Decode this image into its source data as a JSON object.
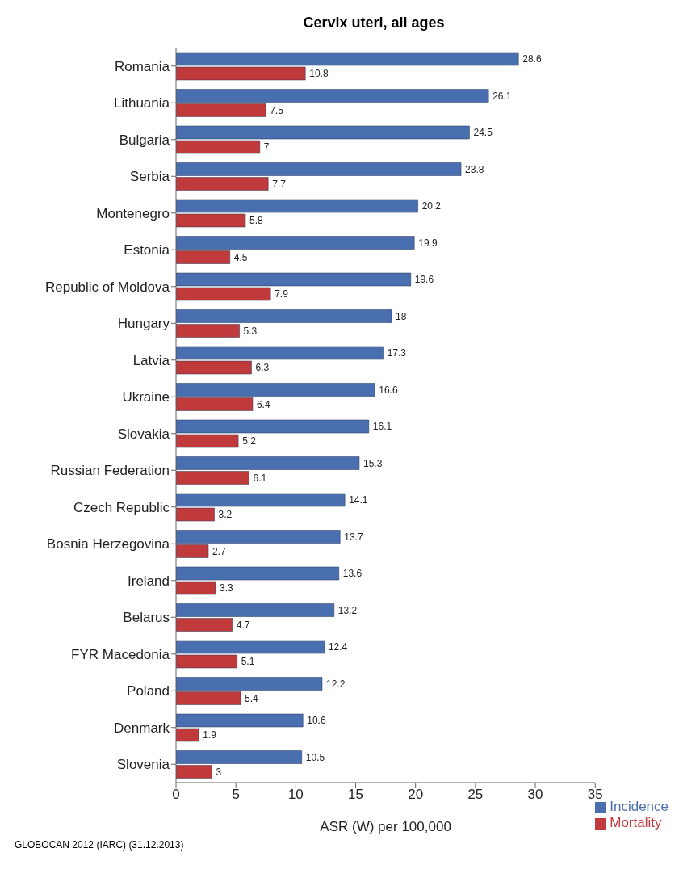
{
  "chart_data": {
    "type": "bar",
    "orientation": "horizontal",
    "title": "Cervix uteri, all ages",
    "xlabel": "ASR (W) per 100,000",
    "categories": [
      "Romania",
      "Lithuania",
      "Bulgaria",
      "Serbia",
      "Montenegro",
      "Estonia",
      "Republic of Moldova",
      "Hungary",
      "Latvia",
      "Ukraine",
      "Slovakia",
      "Russian Federation",
      "Czech Republic",
      "Bosnia Herzegovina",
      "Ireland",
      "Belarus",
      "FYR Macedonia",
      "Poland",
      "Denmark",
      "Slovenia"
    ],
    "series": [
      {
        "name": "Incidence",
        "color": "#4a6fb0",
        "values": [
          28.6,
          26.1,
          24.5,
          23.8,
          20.2,
          19.9,
          19.6,
          18,
          17.3,
          16.6,
          16.1,
          15.3,
          14.1,
          13.7,
          13.6,
          13.2,
          12.4,
          12.2,
          10.6,
          10.5
        ]
      },
      {
        "name": "Mortality",
        "color": "#c0393b",
        "values": [
          10.8,
          7.5,
          7,
          7.7,
          5.8,
          4.5,
          7.9,
          5.3,
          6.3,
          6.4,
          5.2,
          6.1,
          3.2,
          2.7,
          3.3,
          4.7,
          5.1,
          5.4,
          1.9,
          3
        ]
      }
    ],
    "xlim": [
      0,
      35
    ],
    "xticks": [
      0,
      5,
      10,
      15,
      20,
      25,
      30,
      35
    ],
    "grid": false,
    "legend": "bottom right",
    "data_labels": true,
    "annotations": [
      "GLOBOCAN 2012 (IARC) (31.12.2013)"
    ]
  }
}
